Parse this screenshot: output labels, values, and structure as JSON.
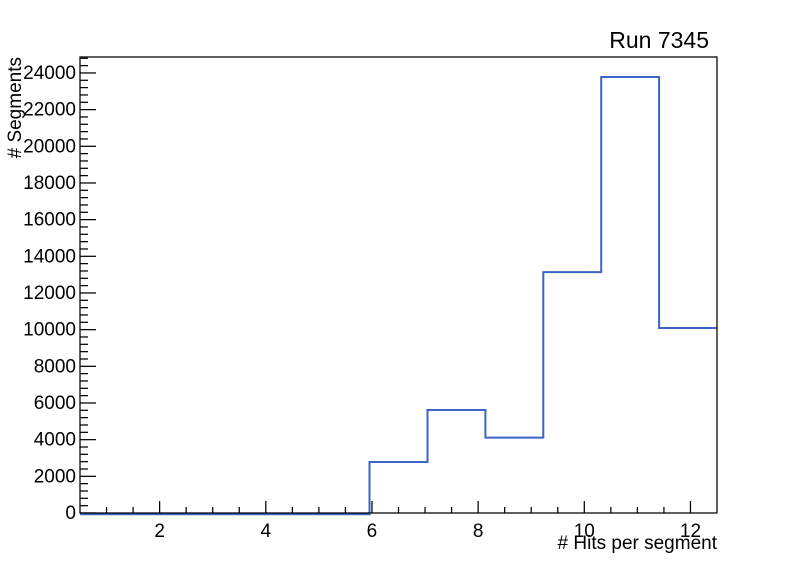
{
  "chart_data": {
    "type": "bar",
    "subtype": "step-histogram",
    "title": "Run 7345",
    "xlabel": "# Hits per segment",
    "ylabel": "# Segments",
    "xlim": [
      0.5,
      12.5
    ],
    "ylim": [
      0,
      24870
    ],
    "n_bins": 11,
    "bin_edges": [
      0.5,
      1.5909,
      2.6818,
      3.7727,
      4.8636,
      5.9545,
      7.0455,
      8.1364,
      9.2273,
      10.3182,
      11.4091,
      12.5
    ],
    "values": [
      0,
      0,
      0,
      0,
      0,
      2780,
      5620,
      4110,
      13140,
      23780,
      10090
    ],
    "x_major_ticks": [
      2,
      4,
      6,
      8,
      10,
      12
    ],
    "x_tick_labels": [
      "2",
      "4",
      "6",
      "8",
      "10",
      "12"
    ],
    "x_minor_tick_step": 0.5,
    "y_major_ticks": [
      0,
      2000,
      4000,
      6000,
      8000,
      10000,
      12000,
      14000,
      16000,
      18000,
      20000,
      22000,
      24000
    ],
    "y_tick_labels": [
      "0",
      "2000",
      "4000",
      "6000",
      "8000",
      "10000",
      "12000",
      "14000",
      "16000",
      "18000",
      "20000",
      "22000",
      "24000"
    ],
    "y_minor_tick_step": 400,
    "grid": false,
    "legend": null,
    "line_color": "#3b65c6",
    "frame_color": "#000000",
    "text_color": "#000000",
    "background_color": "#ffffff"
  }
}
